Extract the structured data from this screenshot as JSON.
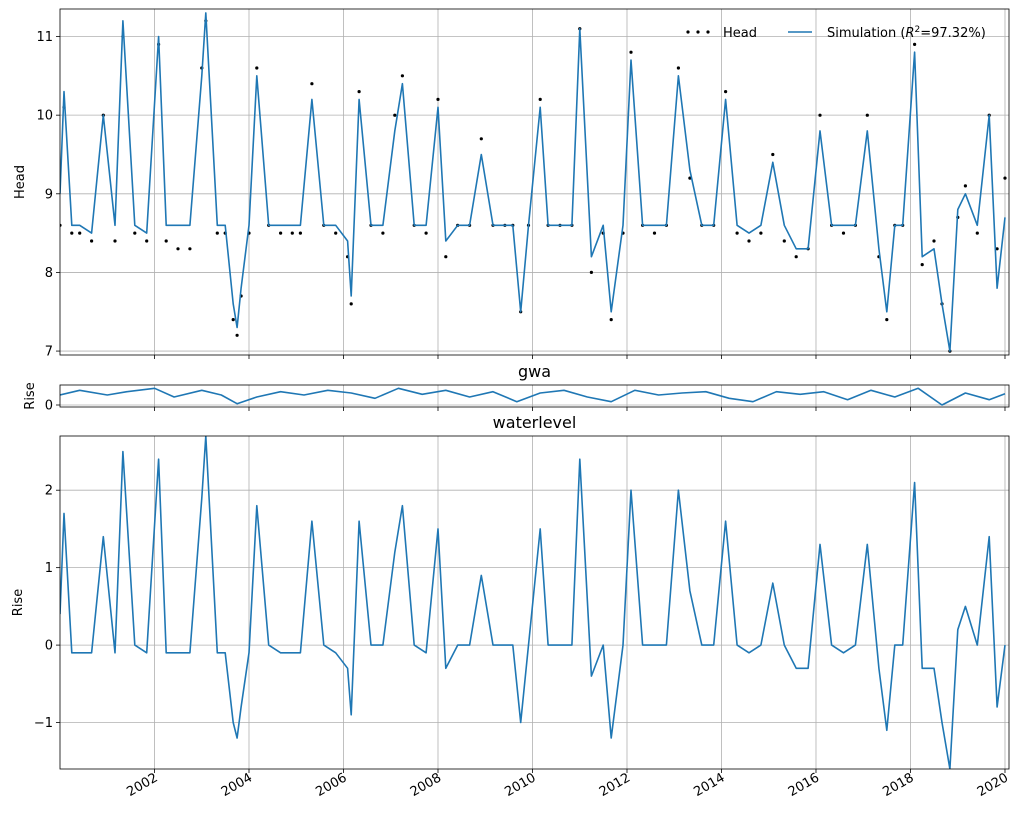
{
  "chart_data": [
    {
      "type": "line",
      "panel": "head",
      "title": "",
      "xlabel": "",
      "ylabel": "Head",
      "xlim": [
        "2000-01-01",
        "2020-02-01"
      ],
      "ylim": [
        6.95,
        11.35
      ],
      "yticks": [
        7,
        8,
        9,
        10,
        11
      ],
      "grid": true,
      "legend": {
        "placement": "top-right",
        "columns": 2
      },
      "series": [
        {
          "name": "Head",
          "style": "dots",
          "color": "#000000",
          "x": [
            "2000-01-01",
            "2000-02-01",
            "2000-04-01",
            "2000-06-01",
            "2000-09-01",
            "2000-12-01",
            "2001-03-01",
            "2001-05-01",
            "2001-08-01",
            "2001-11-01",
            "2002-02-01",
            "2002-04-01",
            "2002-07-01",
            "2002-10-01",
            "2003-01-01",
            "2003-02-01",
            "2003-05-01",
            "2003-07-01",
            "2003-09-01",
            "2003-10-01",
            "2003-11-01",
            "2004-01-01",
            "2004-03-01",
            "2004-06-01",
            "2004-09-01",
            "2004-12-01",
            "2005-02-01",
            "2005-05-01",
            "2005-08-01",
            "2005-11-01",
            "2006-02-01",
            "2006-03-01",
            "2006-05-01",
            "2006-08-01",
            "2006-11-01",
            "2007-02-01",
            "2007-04-01",
            "2007-07-01",
            "2007-10-01",
            "2008-01-01",
            "2008-03-01",
            "2008-06-01",
            "2008-09-01",
            "2008-12-01",
            "2009-03-01",
            "2009-06-01",
            "2009-08-01",
            "2009-10-01",
            "2009-12-01",
            "2010-03-01",
            "2010-05-01",
            "2010-08-01",
            "2010-11-01",
            "2011-01-01",
            "2011-04-01",
            "2011-07-01",
            "2011-09-01",
            "2011-12-01",
            "2012-02-01",
            "2012-05-01",
            "2012-08-01",
            "2012-11-01",
            "2013-02-01",
            "2013-05-01",
            "2013-08-01",
            "2013-11-01",
            "2014-02-01",
            "2014-05-01",
            "2014-08-01",
            "2014-11-01",
            "2015-02-01",
            "2015-05-01",
            "2015-08-01",
            "2015-11-01",
            "2016-02-01",
            "2016-05-01",
            "2016-08-01",
            "2016-11-01",
            "2017-02-01",
            "2017-05-01",
            "2017-07-01",
            "2017-09-01",
            "2017-11-01",
            "2018-02-01",
            "2018-04-01",
            "2018-07-01",
            "2018-09-01",
            "2018-11-01",
            "2019-01-01",
            "2019-03-01",
            "2019-06-01",
            "2019-09-01",
            "2019-11-01",
            "2020-01-01"
          ],
          "values": [
            8.6,
            10.1,
            8.5,
            8.5,
            8.4,
            10.0,
            8.4,
            11.0,
            8.5,
            8.4,
            10.9,
            8.4,
            8.3,
            8.3,
            10.6,
            11.2,
            8.5,
            8.5,
            7.4,
            7.2,
            7.7,
            8.5,
            10.6,
            8.6,
            8.5,
            8.5,
            8.5,
            10.4,
            8.6,
            8.5,
            8.2,
            7.6,
            10.3,
            8.6,
            8.5,
            10.0,
            10.5,
            8.6,
            8.5,
            10.2,
            8.2,
            8.6,
            8.6,
            9.7,
            8.6,
            8.6,
            8.6,
            7.5,
            8.6,
            10.2,
            8.6,
            8.6,
            8.6,
            11.1,
            8.0,
            8.5,
            7.4,
            8.5,
            10.8,
            8.6,
            8.5,
            8.6,
            10.6,
            9.2,
            8.6,
            8.6,
            10.3,
            8.5,
            8.4,
            8.5,
            9.5,
            8.4,
            8.2,
            8.3,
            10.0,
            8.6,
            8.5,
            8.6,
            10.0,
            8.2,
            7.4,
            8.6,
            8.6,
            10.9,
            8.1,
            8.4,
            7.6,
            7.0,
            8.7,
            9.1,
            8.5,
            10.0,
            8.3,
            9.2
          ]
        },
        {
          "name": "Simulation ($R^2$=97.32%)",
          "legend_prefix": "Simulation (",
          "legend_r": "R",
          "legend_sup": "2",
          "legend_suffix": "=97.32%)",
          "style": "line",
          "color": "#1f77b4",
          "x": [
            "2000-01-01",
            "2000-02-01",
            "2000-04-01",
            "2000-06-01",
            "2000-09-01",
            "2000-12-01",
            "2001-03-01",
            "2001-05-01",
            "2001-08-01",
            "2001-11-01",
            "2002-02-01",
            "2002-04-01",
            "2002-07-01",
            "2002-10-01",
            "2003-01-01",
            "2003-02-01",
            "2003-05-01",
            "2003-07-01",
            "2003-09-01",
            "2003-10-01",
            "2003-11-01",
            "2004-01-01",
            "2004-03-01",
            "2004-06-01",
            "2004-09-01",
            "2004-12-01",
            "2005-02-01",
            "2005-05-01",
            "2005-08-01",
            "2005-11-01",
            "2006-02-01",
            "2006-03-01",
            "2006-05-01",
            "2006-08-01",
            "2006-11-01",
            "2007-02-01",
            "2007-04-01",
            "2007-07-01",
            "2007-10-01",
            "2008-01-01",
            "2008-03-01",
            "2008-06-01",
            "2008-09-01",
            "2008-12-01",
            "2009-03-01",
            "2009-06-01",
            "2009-08-01",
            "2009-10-01",
            "2009-12-01",
            "2010-03-01",
            "2010-05-01",
            "2010-08-01",
            "2010-11-01",
            "2011-01-01",
            "2011-04-01",
            "2011-07-01",
            "2011-09-01",
            "2011-12-01",
            "2012-02-01",
            "2012-05-01",
            "2012-08-01",
            "2012-11-01",
            "2013-02-01",
            "2013-05-01",
            "2013-08-01",
            "2013-11-01",
            "2014-02-01",
            "2014-05-01",
            "2014-08-01",
            "2014-11-01",
            "2015-02-01",
            "2015-05-01",
            "2015-08-01",
            "2015-11-01",
            "2016-02-01",
            "2016-05-01",
            "2016-08-01",
            "2016-11-01",
            "2017-02-01",
            "2017-05-01",
            "2017-07-01",
            "2017-09-01",
            "2017-11-01",
            "2018-02-01",
            "2018-04-01",
            "2018-07-01",
            "2018-09-01",
            "2018-11-01",
            "2019-01-01",
            "2019-03-01",
            "2019-06-01",
            "2019-09-01",
            "2019-11-01",
            "2020-01-01"
          ],
          "values": [
            9.0,
            10.3,
            8.6,
            8.6,
            8.5,
            10.0,
            8.6,
            11.2,
            8.6,
            8.5,
            11.0,
            8.6,
            8.6,
            8.6,
            10.5,
            11.3,
            8.6,
            8.6,
            7.6,
            7.3,
            7.8,
            8.6,
            10.5,
            8.6,
            8.6,
            8.6,
            8.6,
            10.2,
            8.6,
            8.6,
            8.4,
            7.7,
            10.2,
            8.6,
            8.6,
            9.8,
            10.4,
            8.6,
            8.6,
            10.1,
            8.4,
            8.6,
            8.6,
            9.5,
            8.6,
            8.6,
            8.6,
            7.5,
            8.6,
            10.1,
            8.6,
            8.6,
            8.6,
            11.1,
            8.2,
            8.6,
            7.5,
            8.6,
            10.7,
            8.6,
            8.6,
            8.6,
            10.5,
            9.3,
            8.6,
            8.6,
            10.2,
            8.6,
            8.5,
            8.6,
            9.4,
            8.6,
            8.3,
            8.3,
            9.8,
            8.6,
            8.6,
            8.6,
            9.8,
            8.3,
            7.5,
            8.6,
            8.6,
            10.8,
            8.2,
            8.3,
            7.6,
            7.0,
            8.8,
            9.0,
            8.6,
            10.0,
            7.8,
            8.7
          ]
        }
      ]
    },
    {
      "type": "line",
      "panel": "gwa",
      "title": "gwa",
      "xlabel": "",
      "ylabel": "Rise",
      "xlim": [
        "2000-01-01",
        "2020-02-01"
      ],
      "ylim": [
        -0.03,
        0.3
      ],
      "yticks": [
        0
      ],
      "grid": true,
      "series": [
        {
          "color": "#1f77b4",
          "x": [
            "2000-01-01",
            "2000-06-01",
            "2001-01-01",
            "2001-06-01",
            "2002-01-01",
            "2002-06-01",
            "2003-01-01",
            "2003-06-01",
            "2003-10-01",
            "2004-03-01",
            "2004-09-01",
            "2005-03-01",
            "2005-09-01",
            "2006-03-01",
            "2006-09-01",
            "2007-03-01",
            "2007-09-01",
            "2008-03-01",
            "2008-09-01",
            "2009-03-01",
            "2009-09-01",
            "2010-03-01",
            "2010-09-01",
            "2011-03-01",
            "2011-09-01",
            "2012-03-01",
            "2012-09-01",
            "2013-03-01",
            "2013-09-01",
            "2014-03-01",
            "2014-09-01",
            "2015-03-01",
            "2015-09-01",
            "2016-03-01",
            "2016-09-01",
            "2017-03-01",
            "2017-09-01",
            "2018-03-01",
            "2018-09-01",
            "2019-03-01",
            "2019-09-01",
            "2020-01-01"
          ],
          "values": [
            0.15,
            0.22,
            0.15,
            0.2,
            0.25,
            0.12,
            0.22,
            0.15,
            0.02,
            0.12,
            0.2,
            0.15,
            0.22,
            0.18,
            0.1,
            0.25,
            0.16,
            0.22,
            0.12,
            0.2,
            0.05,
            0.18,
            0.22,
            0.12,
            0.05,
            0.22,
            0.15,
            0.18,
            0.2,
            0.1,
            0.05,
            0.2,
            0.16,
            0.2,
            0.08,
            0.22,
            0.12,
            0.25,
            0.0,
            0.18,
            0.08,
            0.17
          ]
        }
      ]
    },
    {
      "type": "line",
      "panel": "waterlevel",
      "title": "waterlevel",
      "xlabel": "",
      "ylabel": "Rise",
      "xlim": [
        "2000-01-01",
        "2020-02-01"
      ],
      "ylim": [
        -1.6,
        2.7
      ],
      "yticks": [
        -1,
        0,
        1,
        2
      ],
      "ytick_labels": [
        "−1",
        "0",
        "1",
        "2"
      ],
      "grid": true,
      "series": [
        {
          "color": "#1f77b4",
          "x": [
            "2000-01-01",
            "2000-02-01",
            "2000-04-01",
            "2000-06-01",
            "2000-09-01",
            "2000-12-01",
            "2001-03-01",
            "2001-05-01",
            "2001-08-01",
            "2001-11-01",
            "2002-02-01",
            "2002-04-01",
            "2002-07-01",
            "2002-10-01",
            "2003-01-01",
            "2003-02-01",
            "2003-05-01",
            "2003-07-01",
            "2003-09-01",
            "2003-10-01",
            "2003-11-01",
            "2004-01-01",
            "2004-03-01",
            "2004-06-01",
            "2004-09-01",
            "2004-12-01",
            "2005-02-01",
            "2005-05-01",
            "2005-08-01",
            "2005-11-01",
            "2006-02-01",
            "2006-03-01",
            "2006-05-01",
            "2006-08-01",
            "2006-11-01",
            "2007-02-01",
            "2007-04-01",
            "2007-07-01",
            "2007-10-01",
            "2008-01-01",
            "2008-03-01",
            "2008-06-01",
            "2008-09-01",
            "2008-12-01",
            "2009-03-01",
            "2009-06-01",
            "2009-08-01",
            "2009-10-01",
            "2009-12-01",
            "2010-03-01",
            "2010-05-01",
            "2010-08-01",
            "2010-11-01",
            "2011-01-01",
            "2011-04-01",
            "2011-07-01",
            "2011-09-01",
            "2011-12-01",
            "2012-02-01",
            "2012-05-01",
            "2012-08-01",
            "2012-11-01",
            "2013-02-01",
            "2013-05-01",
            "2013-08-01",
            "2013-11-01",
            "2014-02-01",
            "2014-05-01",
            "2014-08-01",
            "2014-11-01",
            "2015-02-01",
            "2015-05-01",
            "2015-08-01",
            "2015-11-01",
            "2016-02-01",
            "2016-05-01",
            "2016-08-01",
            "2016-11-01",
            "2017-02-01",
            "2017-05-01",
            "2017-07-01",
            "2017-09-01",
            "2017-11-01",
            "2018-02-01",
            "2018-04-01",
            "2018-07-01",
            "2018-09-01",
            "2018-11-01",
            "2019-01-01",
            "2019-03-01",
            "2019-06-01",
            "2019-09-01",
            "2019-11-01",
            "2020-01-01"
          ],
          "values": [
            0.4,
            1.7,
            -0.1,
            -0.1,
            -0.1,
            1.4,
            -0.1,
            2.5,
            0.0,
            -0.1,
            2.4,
            -0.1,
            -0.1,
            -0.1,
            1.9,
            2.7,
            -0.1,
            -0.1,
            -1.0,
            -1.2,
            -0.8,
            -0.1,
            1.8,
            0.0,
            -0.1,
            -0.1,
            -0.1,
            1.6,
            0.0,
            -0.1,
            -0.3,
            -0.9,
            1.6,
            0.0,
            0.0,
            1.2,
            1.8,
            0.0,
            -0.1,
            1.5,
            -0.3,
            0.0,
            0.0,
            0.9,
            0.0,
            0.0,
            0.0,
            -1.0,
            0.0,
            1.5,
            0.0,
            0.0,
            0.0,
            2.4,
            -0.4,
            0.0,
            -1.2,
            0.0,
            2.0,
            0.0,
            0.0,
            0.0,
            2.0,
            0.7,
            0.0,
            0.0,
            1.6,
            0.0,
            -0.1,
            0.0,
            0.8,
            0.0,
            -0.3,
            -0.3,
            1.3,
            0.0,
            -0.1,
            0.0,
            1.3,
            -0.3,
            -1.1,
            0.0,
            0.0,
            2.1,
            -0.3,
            -0.3,
            -1.0,
            -1.6,
            0.2,
            0.5,
            0.0,
            1.4,
            -0.8,
            0.0
          ]
        }
      ]
    }
  ],
  "x_tick_labels": [
    "2002",
    "2004",
    "2006",
    "2008",
    "2010",
    "2012",
    "2014",
    "2016",
    "2018",
    "2020"
  ]
}
